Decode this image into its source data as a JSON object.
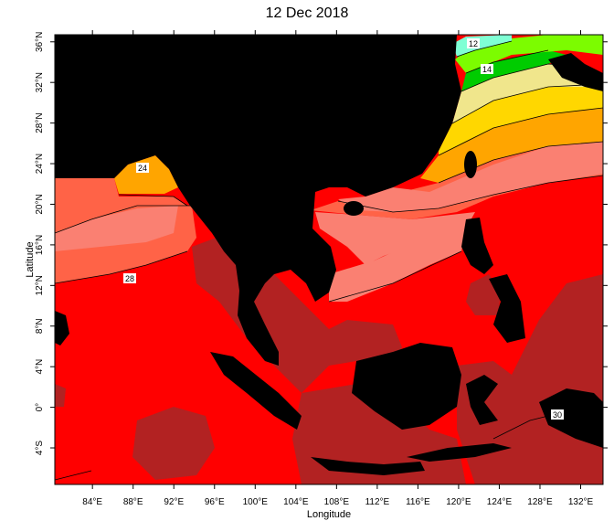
{
  "title": "12 Dec 2018",
  "x_label": "Longitude",
  "y_label": "Latitude",
  "xlim": [
    80.3,
    134.2
  ],
  "ylim": [
    -7.6,
    36.7
  ],
  "xticks": [
    {
      "value": 84,
      "label": "84°E"
    },
    {
      "value": 88,
      "label": "88°E"
    },
    {
      "value": 92,
      "label": "92°E"
    },
    {
      "value": 96,
      "label": "96°E"
    },
    {
      "value": 100,
      "label": "100°E"
    },
    {
      "value": 104,
      "label": "104°E"
    },
    {
      "value": 108,
      "label": "108°E"
    },
    {
      "value": 112,
      "label": "112°E"
    },
    {
      "value": 116,
      "label": "116°E"
    },
    {
      "value": 120,
      "label": "120°E"
    },
    {
      "value": 124,
      "label": "124°E"
    },
    {
      "value": 128,
      "label": "128°E"
    },
    {
      "value": 132,
      "label": "132°E"
    }
  ],
  "yticks": [
    {
      "value": -4,
      "label": "4°S"
    },
    {
      "value": 0,
      "label": "0°"
    },
    {
      "value": 4,
      "label": "4°N"
    },
    {
      "value": 8,
      "label": "8°N"
    },
    {
      "value": 12,
      "label": "12°N"
    },
    {
      "value": 16,
      "label": "16°N"
    },
    {
      "value": 20,
      "label": "20°N"
    },
    {
      "value": 24,
      "label": "24°N"
    },
    {
      "value": 28,
      "label": "28°N"
    },
    {
      "value": 32,
      "label": "32°N"
    },
    {
      "value": 36,
      "label": "36°N"
    }
  ],
  "contour_labels": [
    "12",
    "14",
    "24",
    "28",
    "30"
  ]
}
